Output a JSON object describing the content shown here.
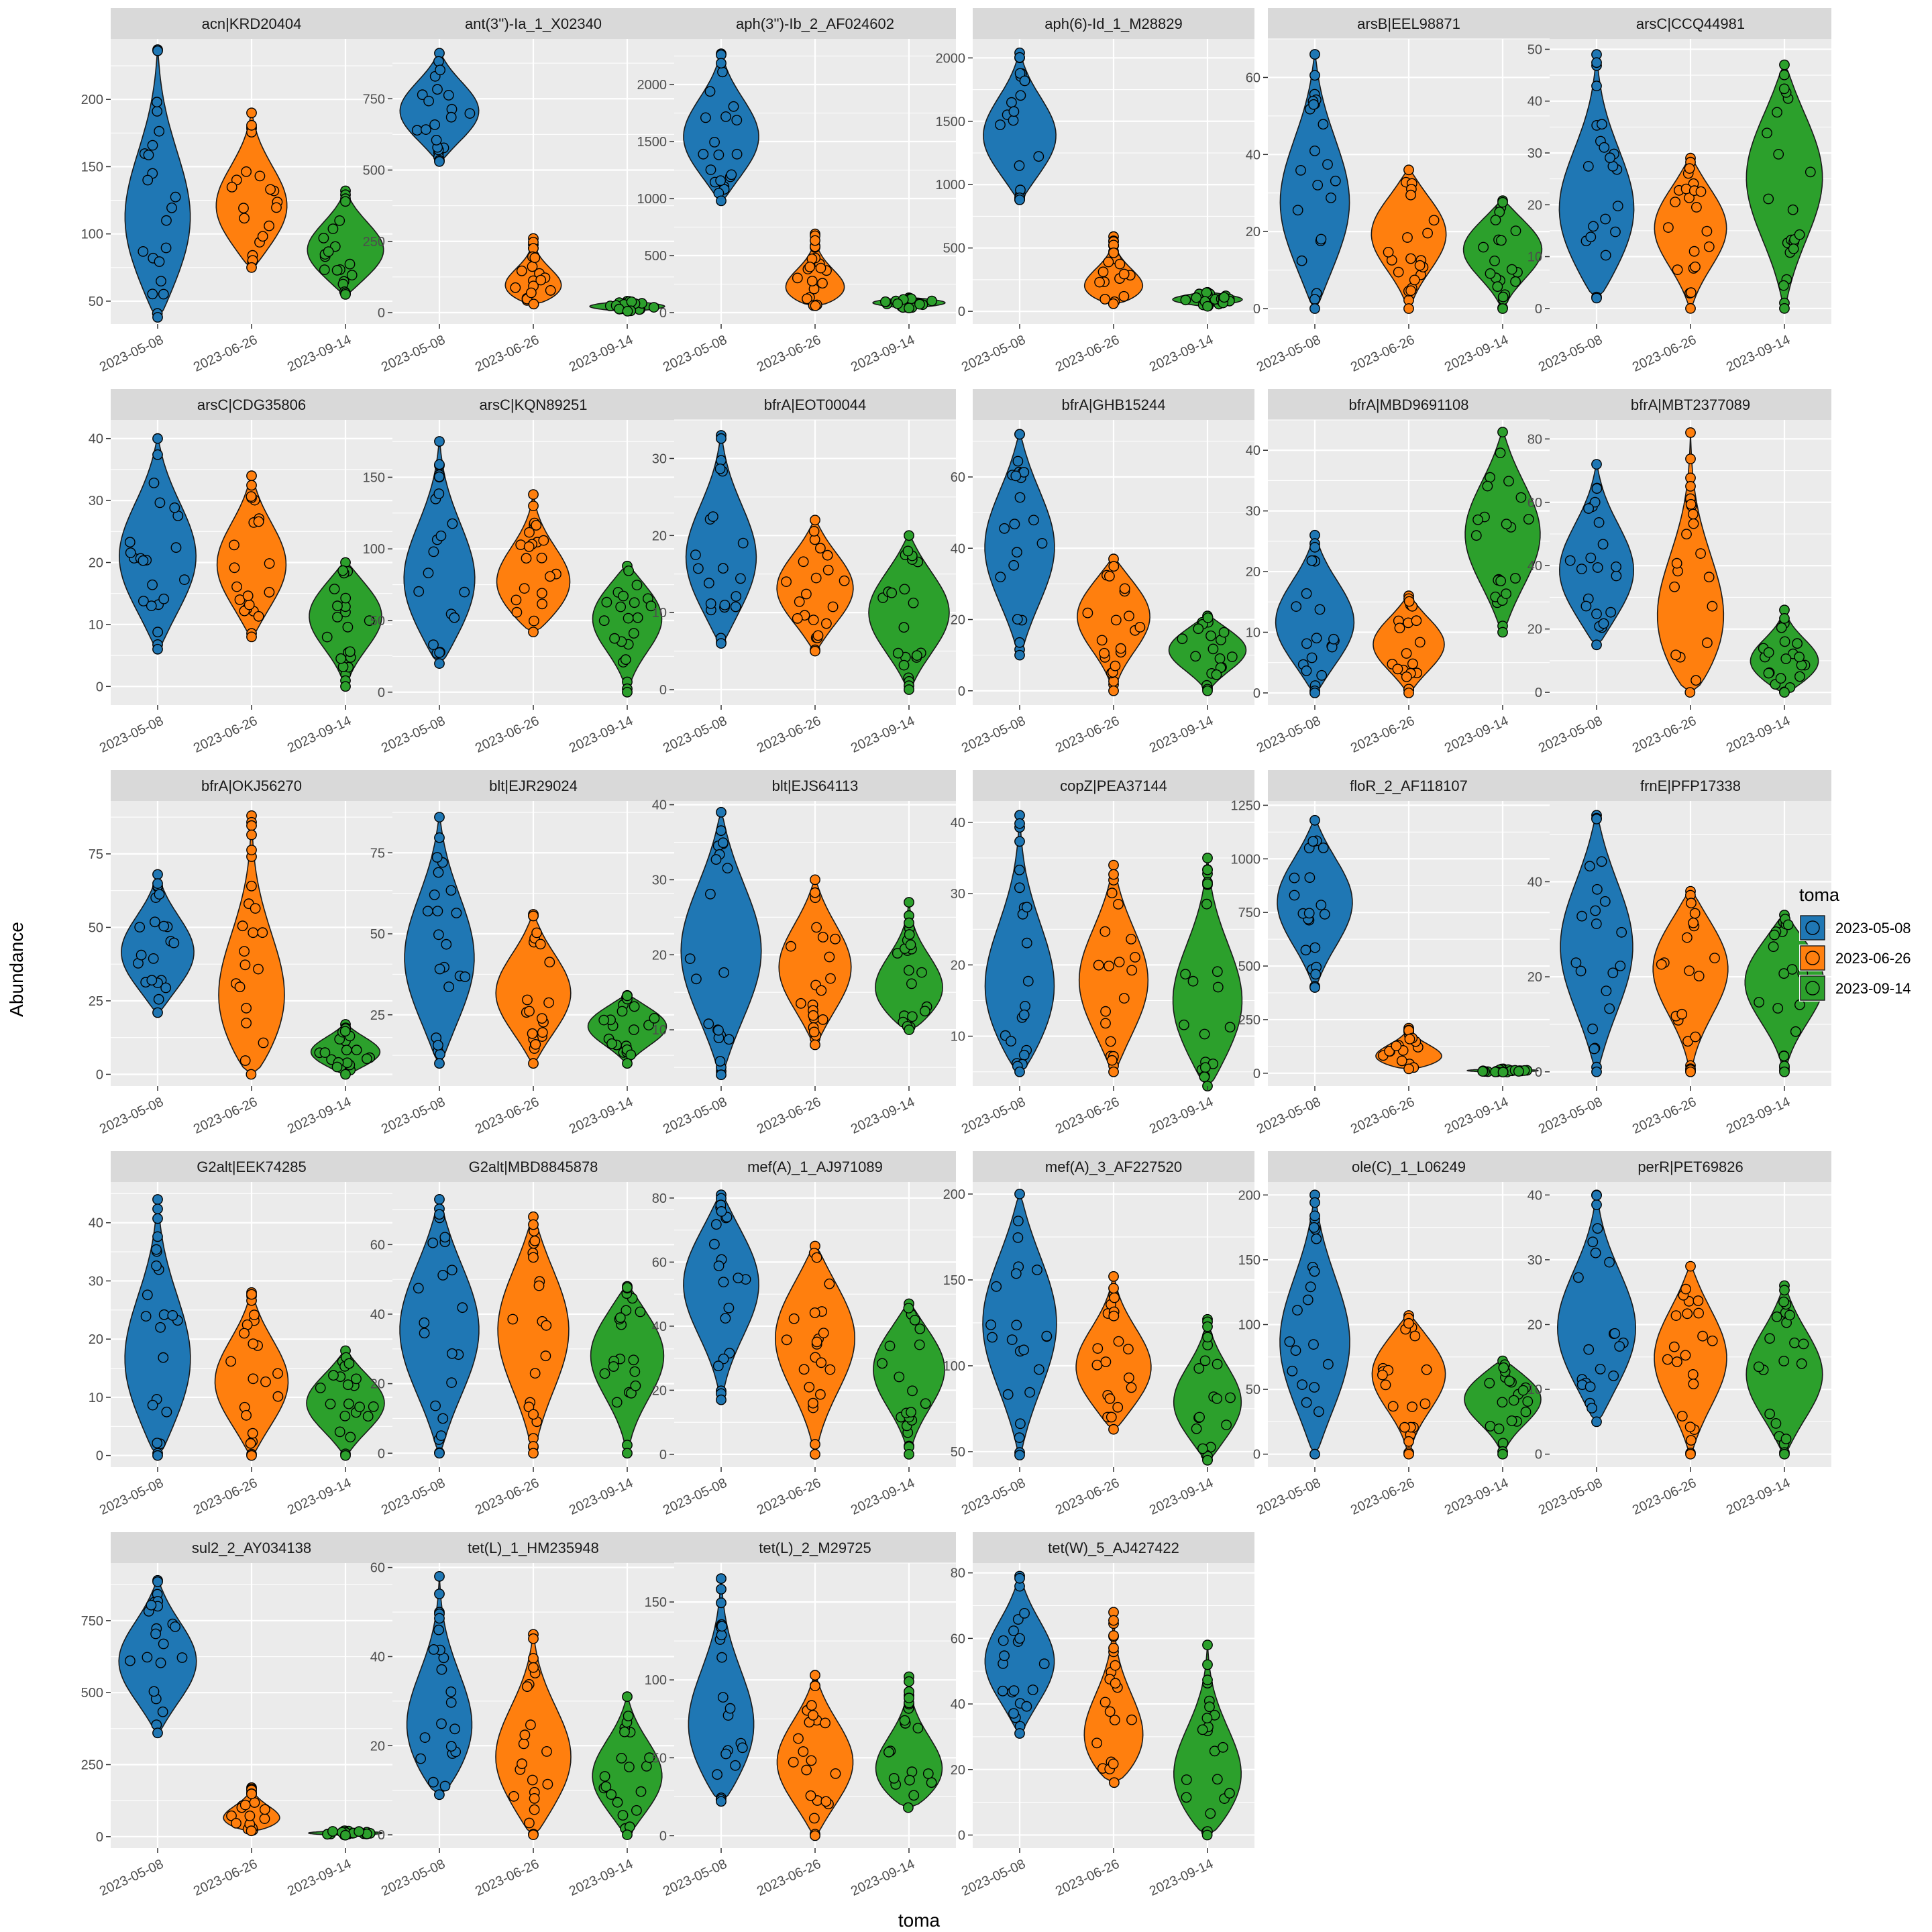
{
  "chart_data": {
    "type": "violin",
    "xlabel": "toma",
    "ylabel": "Abundance",
    "legend": {
      "title": "toma",
      "placement": "right",
      "entries": [
        "2023-05-08",
        "2023-06-26",
        "2023-09-14"
      ]
    },
    "colors": {
      "2023-05-08": "#1f77b4",
      "2023-06-26": "#ff7f0e",
      "2023-09-14": "#2ca02c"
    },
    "categories": [
      "2023-05-08",
      "2023-06-26",
      "2023-09-14"
    ],
    "panels": [
      {
        "title": "acn|KRD20404",
        "ylim": [
          33,
          245
        ],
        "yticks": [
          "50",
          "100",
          "150",
          "200"
        ],
        "groups": [
          {
            "min": 38,
            "max": 237,
            "median": 100
          },
          {
            "min": 75,
            "max": 190,
            "median": 115
          },
          {
            "min": 55,
            "max": 132,
            "median": 85
          }
        ]
      },
      {
        "title": "ant(3'')-Ia_1_X02340",
        "ylim": [
          -40,
          960
        ],
        "yticks": [
          "0",
          "250",
          "500",
          "750"
        ],
        "groups": [
          {
            "min": 530,
            "max": 910,
            "median": 700
          },
          {
            "min": 30,
            "max": 260,
            "median": 60
          },
          {
            "min": 5,
            "max": 40,
            "median": 20
          }
        ]
      },
      {
        "title": "aph(3'')-Ib_2_AF024602",
        "ylim": [
          -100,
          2400
        ],
        "yticks": [
          "0",
          "500",
          "1000",
          "1500",
          "2000"
        ],
        "groups": [
          {
            "min": 980,
            "max": 2270,
            "median": 1500
          },
          {
            "min": 60,
            "max": 690,
            "median": 110
          },
          {
            "min": 40,
            "max": 130,
            "median": 90
          }
        ]
      },
      {
        "title": "aph(6)-Id_1_M28829",
        "ylim": [
          -100,
          2150
        ],
        "yticks": [
          "0",
          "500",
          "1000",
          "1500",
          "2000"
        ],
        "groups": [
          {
            "min": 880,
            "max": 2040,
            "median": 1350
          },
          {
            "min": 60,
            "max": 590,
            "median": 110
          },
          {
            "min": 40,
            "max": 150,
            "median": 90
          }
        ]
      },
      {
        "title": "arsB|EEL98871",
        "ylim": [
          -4,
          70
        ],
        "yticks": [
          "0",
          "20",
          "40",
          "60"
        ],
        "groups": [
          {
            "min": 0,
            "max": 66,
            "median": 25
          },
          {
            "min": 0,
            "max": 36,
            "median": 20
          },
          {
            "min": 0,
            "max": 28,
            "median": 16
          }
        ]
      },
      {
        "title": "arsC|CCQ44981",
        "ylim": [
          -3,
          52
        ],
        "yticks": [
          "0",
          "10",
          "20",
          "30",
          "40",
          "50"
        ],
        "groups": [
          {
            "min": 2,
            "max": 49,
            "median": 16
          },
          {
            "min": 0,
            "max": 29,
            "median": 16
          },
          {
            "min": 0,
            "max": 47,
            "median": 26
          }
        ]
      },
      {
        "title": "arsC|CDG35806",
        "ylim": [
          -3,
          43
        ],
        "yticks": [
          "0",
          "10",
          "20",
          "30",
          "40"
        ],
        "groups": [
          {
            "min": 6,
            "max": 40,
            "median": 20
          },
          {
            "min": 8,
            "max": 34,
            "median": 19
          },
          {
            "min": 0,
            "max": 20,
            "median": 12
          }
        ]
      },
      {
        "title": "arsC|KQN89251",
        "ylim": [
          -9,
          190
        ],
        "yticks": [
          "0",
          "50",
          "100",
          "150"
        ],
        "groups": [
          {
            "min": 20,
            "max": 175,
            "median": 70
          },
          {
            "min": 42,
            "max": 138,
            "median": 70
          },
          {
            "min": 0,
            "max": 88,
            "median": 55
          }
        ]
      },
      {
        "title": "bfrA|EOT00044",
        "ylim": [
          -2,
          35
        ],
        "yticks": [
          "0",
          "10",
          "20",
          "30"
        ],
        "groups": [
          {
            "min": 6,
            "max": 33,
            "median": 16
          },
          {
            "min": 5,
            "max": 22,
            "median": 13
          },
          {
            "min": 0,
            "max": 20,
            "median": 10
          }
        ]
      },
      {
        "title": "bfrA|GHB15244",
        "ylim": [
          -4,
          76
        ],
        "yticks": [
          "0",
          "20",
          "40",
          "60"
        ],
        "groups": [
          {
            "min": 10,
            "max": 72,
            "median": 40
          },
          {
            "min": 0,
            "max": 37,
            "median": 22
          },
          {
            "min": 0,
            "max": 21,
            "median": 12
          }
        ]
      },
      {
        "title": "bfrA|MBD9691108",
        "ylim": [
          -2,
          45
        ],
        "yticks": [
          "0",
          "10",
          "20",
          "30",
          "40"
        ],
        "groups": [
          {
            "min": 0,
            "max": 26,
            "median": 11
          },
          {
            "min": 0,
            "max": 16,
            "median": 8
          },
          {
            "min": 10,
            "max": 43,
            "median": 26
          }
        ]
      },
      {
        "title": "bfrA|MBT2377089",
        "ylim": [
          -4,
          86
        ],
        "yticks": [
          "0",
          "20",
          "40",
          "60",
          "80"
        ],
        "groups": [
          {
            "min": 15,
            "max": 72,
            "median": 36
          },
          {
            "min": 0,
            "max": 82,
            "median": 15
          },
          {
            "min": 0,
            "max": 26,
            "median": 8
          }
        ]
      },
      {
        "title": "bfrA|OKJ56270",
        "ylim": [
          -4,
          93
        ],
        "yticks": [
          "0",
          "25",
          "50",
          "75"
        ],
        "groups": [
          {
            "min": 21,
            "max": 68,
            "median": 40
          },
          {
            "min": 0,
            "max": 88,
            "median": 18
          },
          {
            "min": 0,
            "max": 17,
            "median": 7
          }
        ]
      },
      {
        "title": "blt|EJR29024",
        "ylim": [
          3,
          91
        ],
        "yticks": [
          "25",
          "50",
          "75"
        ],
        "groups": [
          {
            "min": 10,
            "max": 86,
            "median": 40
          },
          {
            "min": 10,
            "max": 56,
            "median": 31
          },
          {
            "min": 10,
            "max": 31,
            "median": 22
          }
        ]
      },
      {
        "title": "blt|EJS64113",
        "ylim": [
          2.5,
          40.5
        ],
        "yticks": [
          "10",
          "20",
          "30",
          "40"
        ],
        "groups": [
          {
            "min": 4,
            "max": 39,
            "median": 20
          },
          {
            "min": 8,
            "max": 30,
            "median": 18
          },
          {
            "min": 10,
            "max": 27,
            "median": 14
          }
        ]
      },
      {
        "title": "copZ|PEA37144",
        "ylim": [
          3,
          43
        ],
        "yticks": [
          "10",
          "20",
          "30",
          "40"
        ],
        "groups": [
          {
            "min": 5,
            "max": 41,
            "median": 14
          },
          {
            "min": 5,
            "max": 34,
            "median": 17
          },
          {
            "min": 3,
            "max": 35,
            "median": 13
          }
        ]
      },
      {
        "title": "floR_2_AF118107",
        "ylim": [
          -60,
          1270
        ],
        "yticks": [
          "0",
          "250",
          "500",
          "750",
          "1000",
          "1250"
        ],
        "groups": [
          {
            "min": 400,
            "max": 1180,
            "median": 800
          },
          {
            "min": 20,
            "max": 210,
            "median": 50
          },
          {
            "min": 5,
            "max": 20,
            "median": 10
          }
        ]
      },
      {
        "title": "frnE|PFP17338",
        "ylim": [
          -3,
          57
        ],
        "yticks": [
          "0",
          "20",
          "40"
        ],
        "groups": [
          {
            "min": 0,
            "max": 54,
            "median": 26
          },
          {
            "min": 0,
            "max": 38,
            "median": 23
          },
          {
            "min": 0,
            "max": 33,
            "median": 20
          }
        ]
      },
      {
        "title": "G2alt|EEK74285",
        "ylim": [
          -2,
          47
        ],
        "yticks": [
          "0",
          "10",
          "20",
          "30",
          "40"
        ],
        "groups": [
          {
            "min": 0,
            "max": 44,
            "median": 14
          },
          {
            "min": 0,
            "max": 28,
            "median": 12
          },
          {
            "min": 0,
            "max": 18,
            "median": 9
          }
        ]
      },
      {
        "title": "G2alt|MBD8845878",
        "ylim": [
          -4,
          78
        ],
        "yticks": [
          "0",
          "20",
          "40",
          "60"
        ],
        "groups": [
          {
            "min": 0,
            "max": 73,
            "median": 35
          },
          {
            "min": 0,
            "max": 68,
            "median": 36
          },
          {
            "min": 0,
            "max": 48,
            "median": 30
          }
        ]
      },
      {
        "title": "mef(A)_1_AJ971089",
        "ylim": [
          -4,
          85
        ],
        "yticks": [
          "0",
          "20",
          "40",
          "60",
          "80"
        ],
        "groups": [
          {
            "min": 17,
            "max": 81,
            "median": 55
          },
          {
            "min": 0,
            "max": 65,
            "median": 38
          },
          {
            "min": 0,
            "max": 47,
            "median": 28
          }
        ]
      },
      {
        "title": "mef(A)_3_AF227520",
        "ylim": [
          41,
          207
        ],
        "yticks": [
          "50",
          "100",
          "150",
          "200"
        ],
        "groups": [
          {
            "min": 48,
            "max": 200,
            "median": 125
          },
          {
            "min": 63,
            "max": 152,
            "median": 95
          },
          {
            "min": 45,
            "max": 127,
            "median": 75
          }
        ]
      },
      {
        "title": "ole(C)_1_L06249",
        "ylim": [
          -10,
          210
        ],
        "yticks": [
          "0",
          "50",
          "100",
          "150",
          "200"
        ],
        "groups": [
          {
            "min": 0,
            "max": 200,
            "median": 80
          },
          {
            "min": 0,
            "max": 107,
            "median": 66
          },
          {
            "min": 0,
            "max": 72,
            "median": 46
          }
        ]
      },
      {
        "title": "perR|PET69826",
        "ylim": [
          -2,
          42
        ],
        "yticks": [
          "0",
          "10",
          "20",
          "30",
          "40"
        ],
        "groups": [
          {
            "min": 5,
            "max": 40,
            "median": 18
          },
          {
            "min": 0,
            "max": 29,
            "median": 15
          },
          {
            "min": 0,
            "max": 26,
            "median": 12
          }
        ]
      },
      {
        "title": "sul2_2_AY034138",
        "ylim": [
          -40,
          950
        ],
        "yticks": [
          "0",
          "250",
          "500",
          "750"
        ],
        "groups": [
          {
            "min": 360,
            "max": 890,
            "median": 600
          },
          {
            "min": 20,
            "max": 170,
            "median": 40
          },
          {
            "min": 5,
            "max": 20,
            "median": 12
          }
        ]
      },
      {
        "title": "tet(L)_1_HM235948",
        "ylim": [
          -3,
          61
        ],
        "yticks": [
          "0",
          "20",
          "40",
          "60"
        ],
        "groups": [
          {
            "min": 9,
            "max": 58,
            "median": 20
          },
          {
            "min": 0,
            "max": 45,
            "median": 15
          },
          {
            "min": 0,
            "max": 31,
            "median": 12
          }
        ]
      },
      {
        "title": "tet(L)_2_M29725",
        "ylim": [
          -8,
          175
        ],
        "yticks": [
          "0",
          "50",
          "100",
          "150"
        ],
        "groups": [
          {
            "min": 22,
            "max": 165,
            "median": 60
          },
          {
            "min": 0,
            "max": 103,
            "median": 45
          },
          {
            "min": 18,
            "max": 102,
            "median": 33
          }
        ]
      },
      {
        "title": "tet(W)_5_AJ427422",
        "ylim": [
          -4,
          83
        ],
        "yticks": [
          "0",
          "20",
          "40",
          "60",
          "80"
        ],
        "groups": [
          {
            "min": 31,
            "max": 79,
            "median": 52
          },
          {
            "min": 16,
            "max": 68,
            "median": 24
          },
          {
            "min": 0,
            "max": 58,
            "median": 13
          }
        ]
      }
    ]
  }
}
